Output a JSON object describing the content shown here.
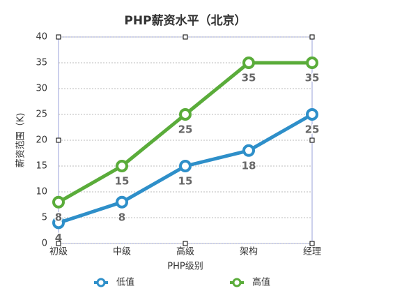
{
  "chart_data": {
    "type": "line",
    "title": "PHP薪资水平（北京）",
    "x_label": "PHP级别",
    "y_label": "薪资范围（K)",
    "categories": [
      "初级",
      "中级",
      "高级",
      "架构",
      "经理"
    ],
    "series": [
      {
        "name": "低值",
        "color": "#2e8fc9",
        "values": [
          4,
          8,
          15,
          18,
          25
        ]
      },
      {
        "name": "高值",
        "color": "#5aac3a",
        "values": [
          8,
          15,
          25,
          35,
          35
        ]
      }
    ],
    "ylim": [
      0,
      40
    ],
    "yticks": [
      0,
      5,
      10,
      15,
      20,
      25,
      30,
      35,
      40
    ],
    "grid": true,
    "legend": "bottom",
    "data_labels": true
  }
}
